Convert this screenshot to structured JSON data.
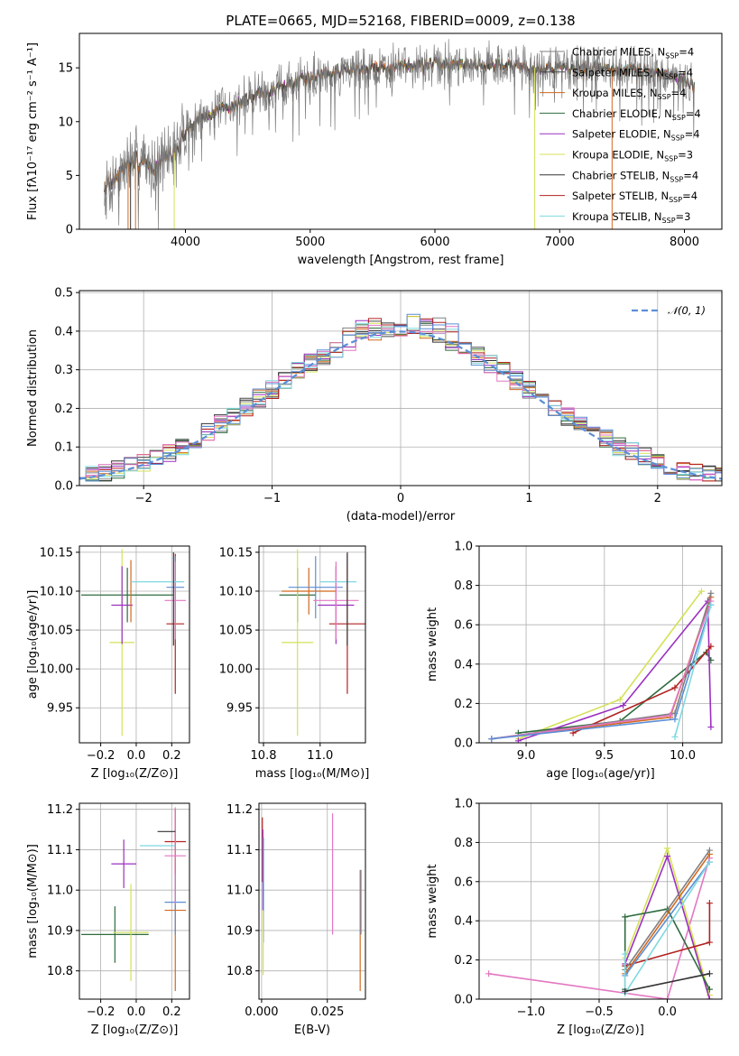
{
  "figure": {
    "title": "PLATE=0665, MJD=52168, FIBERID=0009, z=0.138"
  },
  "chart_data": [
    {
      "id": "spectrum",
      "type": "line",
      "title": "PLATE=0665, MJD=52168, FIBERID=0009, z=0.138",
      "xlabel": "wavelength [Angstrom, rest frame]",
      "ylabel": "Flux [fλ10⁻¹⁷ erg cm⁻² s⁻¹ A⁻¹]",
      "xlim": [
        3150,
        8300
      ],
      "ylim": [
        0,
        18.2
      ],
      "xticks": [
        4000,
        5000,
        6000,
        7000,
        8000
      ],
      "yticks": [
        0,
        5,
        10,
        15
      ],
      "grid": false,
      "legend_position": "right",
      "continuum": {
        "x": [
          3350,
          3450,
          3550,
          3650,
          3750,
          3850,
          3950,
          4000,
          4100,
          4200,
          4300,
          4400,
          4500,
          4600,
          4700,
          4800,
          4900,
          5000,
          5100,
          5200,
          5300,
          5400,
          5500,
          5600,
          5800,
          6000,
          6200,
          6400,
          6600,
          6800,
          7000,
          7200,
          7400,
          7600,
          7800,
          8000,
          8080
        ],
        "y": [
          4.0,
          5.0,
          6.2,
          6.3,
          6.0,
          6.8,
          7.3,
          9.3,
          10.2,
          10.7,
          11.2,
          11.5,
          12.2,
          12.7,
          13.0,
          13.4,
          13.8,
          14.2,
          14.5,
          14.7,
          14.8,
          15.0,
          15.1,
          15.0,
          15.2,
          15.4,
          15.3,
          15.3,
          15.2,
          15.0,
          15.0,
          15.0,
          14.9,
          14.8,
          14.6,
          14.0,
          13.2
        ]
      },
      "series": [
        {
          "name": "Chabrier MILES, N_SSP=4",
          "label_main": "Chabrier MILES, N",
          "label_sub": "SSP",
          "label_tail": "=4",
          "color": "#808080"
        },
        {
          "name": "Salpeter MILES, N_SSP=4",
          "label_main": "Salpeter MILES, N",
          "label_sub": "SSP",
          "label_tail": "=4",
          "color": "#4a4a4a"
        },
        {
          "name": "Kroupa MILES, N_SSP=4",
          "label_main": "Kroupa MILES, N",
          "label_sub": "SSP",
          "label_tail": "=4",
          "color": "#d2691e"
        },
        {
          "name": "Chabrier ELODIE, N_SSP=4",
          "label_main": "Chabrier ELODIE, N",
          "label_sub": "SSP",
          "label_tail": "=4",
          "color": "#2e6b3e"
        },
        {
          "name": "Salpeter ELODIE, N_SSP=4",
          "label_main": "Salpeter ELODIE, N",
          "label_sub": "SSP",
          "label_tail": "=4",
          "color": "#9b30c0"
        },
        {
          "name": "Kroupa ELODIE, N_SSP=3",
          "label_main": "Kroupa ELODIE, N",
          "label_sub": "SSP",
          "label_tail": "=3",
          "color": "#d4e157"
        },
        {
          "name": "Chabrier STELIB, N_SSP=4",
          "label_main": "Chabrier STELIB, N",
          "label_sub": "SSP",
          "label_tail": "=4",
          "color": "#333333"
        },
        {
          "name": "Salpeter STELIB, N_SSP=4",
          "label_main": "Salpeter STELIB, N",
          "label_sub": "SSP",
          "label_tail": "=4",
          "color": "#b22222"
        },
        {
          "name": "Kroupa STELIB, N_SSP=3",
          "label_main": "Kroupa STELIB, N",
          "label_sub": "SSP",
          "label_tail": "=3",
          "color": "#7fd8e0"
        }
      ]
    },
    {
      "id": "residuals",
      "type": "line",
      "xlabel": "(data-model)/error",
      "ylabel": "Normed distribution",
      "xlim": [
        -2.5,
        2.5
      ],
      "ylim": [
        0,
        0.505
      ],
      "xticks": [
        -2,
        -1,
        0,
        1,
        2
      ],
      "yticks": [
        0.0,
        0.1,
        0.2,
        0.3,
        0.4,
        0.5
      ],
      "grid": true,
      "legend_position": "top-right",
      "gaussian_label": "𝒩(0, 1)",
      "gaussian_color": "#5b8ed6",
      "bin_width": 0.1,
      "hist_colors": [
        "#808080",
        "#4a4a4a",
        "#d2691e",
        "#2e6b3e",
        "#9b30c0",
        "#d4e157",
        "#333333",
        "#b22222",
        "#7fd8e0",
        "#e377c2",
        "#5b8ed6"
      ]
    },
    {
      "id": "age_vs_Z",
      "type": "scatter",
      "xlabel": "Z [log₁₀(Z/Z⊙)]",
      "ylabel": "age  [log₁₀(age/yr)]",
      "xlim": [
        -0.32,
        0.3
      ],
      "ylim": [
        9.905,
        10.158
      ],
      "xticks": [
        -0.2,
        0.0,
        0.2
      ],
      "yticks": [
        9.95,
        10.0,
        10.05,
        10.1,
        10.15
      ],
      "grid": true,
      "points": [
        {
          "x": -0.05,
          "y": 10.095,
          "xerr": 0.26,
          "yerr": 0.035,
          "color": "#2e6b3e"
        },
        {
          "x": -0.08,
          "y": 10.034,
          "xerr": 0.07,
          "yerr": 0.12,
          "color": "#d4e157"
        },
        {
          "x": -0.08,
          "y": 10.082,
          "xerr": 0.06,
          "yerr": 0.05,
          "color": "#9b30c0"
        },
        {
          "x": -0.03,
          "y": 10.1,
          "xerr": 0.0,
          "yerr": 0.04,
          "color": "#d2691e"
        },
        {
          "x": 0.22,
          "y": 10.058,
          "xerr": 0.05,
          "yerr": 0.09,
          "color": "#b22222"
        },
        {
          "x": 0.22,
          "y": 10.105,
          "xerr": 0.05,
          "yerr": 0.04,
          "color": "#5b8ed6"
        },
        {
          "x": 0.22,
          "y": 10.088,
          "xerr": 0.06,
          "yerr": 0.05,
          "color": "#e377c2"
        },
        {
          "x": 0.12,
          "y": 10.112,
          "xerr": 0.15,
          "yerr": 0.0,
          "color": "#7fd8e0"
        },
        {
          "x": 0.21,
          "y": 10.09,
          "xerr": 0.0,
          "yerr": 0.06,
          "color": "#333333"
        }
      ]
    },
    {
      "id": "age_vs_mass",
      "type": "scatter",
      "xlabel": "mass [log₁₀(M/M⊙)]",
      "ylabel": "",
      "xlim": [
        10.73,
        11.2
      ],
      "ylim": [
        9.905,
        10.158
      ],
      "xticks": [
        10.75,
        11.0
      ],
      "yticks": [
        9.95,
        10.0,
        10.05,
        10.1,
        10.15
      ],
      "grid": true,
      "points": [
        {
          "x": 10.9,
          "y": 10.095,
          "xerr": 0.08,
          "yerr": 0.035,
          "color": "#2e6b3e"
        },
        {
          "x": 10.9,
          "y": 10.034,
          "xerr": 0.07,
          "yerr": 0.12,
          "color": "#d4e157"
        },
        {
          "x": 11.07,
          "y": 10.082,
          "xerr": 0.08,
          "yerr": 0.05,
          "color": "#9b30c0"
        },
        {
          "x": 10.95,
          "y": 10.1,
          "xerr": 0.12,
          "yerr": 0.03,
          "color": "#d2691e"
        },
        {
          "x": 11.12,
          "y": 10.058,
          "xerr": 0.08,
          "yerr": 0.09,
          "color": "#b22222"
        },
        {
          "x": 10.98,
          "y": 10.105,
          "xerr": 0.12,
          "yerr": 0.04,
          "color": "#5b8ed6"
        },
        {
          "x": 11.07,
          "y": 10.088,
          "xerr": 0.1,
          "yerr": 0.05,
          "color": "#e377c2"
        },
        {
          "x": 11.08,
          "y": 10.112,
          "xerr": 0.08,
          "yerr": 0.0,
          "color": "#7fd8e0"
        },
        {
          "x": 11.12,
          "y": 10.09,
          "xerr": 0.0,
          "yerr": 0.06,
          "color": "#333333"
        }
      ]
    },
    {
      "id": "mass_weight_vs_age",
      "type": "line",
      "xlabel": "age  [log₁₀(age/yr)]",
      "ylabel": "mass weight",
      "xlim": [
        8.7,
        10.25
      ],
      "ylim": [
        0.0,
        1.0
      ],
      "xticks": [
        9.0,
        9.5,
        10.0
      ],
      "yticks": [
        0.0,
        0.2,
        0.4,
        0.6,
        0.8,
        1.0
      ],
      "grid": true,
      "series": [
        {
          "color": "#d4e157",
          "x": [
            8.95,
            9.6,
            10.12
          ],
          "y": [
            0.02,
            0.22,
            0.77
          ]
        },
        {
          "color": "#2e6b3e",
          "x": [
            8.95,
            9.6,
            10.15,
            10.18
          ],
          "y": [
            0.05,
            0.11,
            0.46,
            0.42
          ]
        },
        {
          "color": "#9b30c0",
          "x": [
            8.95,
            9.62,
            10.16,
            10.18
          ],
          "y": [
            0.01,
            0.19,
            0.72,
            0.08
          ]
        },
        {
          "color": "#b22222",
          "x": [
            9.3,
            9.95,
            10.18
          ],
          "y": [
            0.05,
            0.28,
            0.49
          ]
        },
        {
          "color": "#d2691e",
          "x": [
            8.78,
            9.92,
            10.18
          ],
          "y": [
            0.02,
            0.13,
            0.74
          ]
        },
        {
          "color": "#808080",
          "x": [
            8.78,
            9.95,
            10.18
          ],
          "y": [
            0.02,
            0.15,
            0.76
          ]
        },
        {
          "color": "#e377c2",
          "x": [
            8.78,
            9.92,
            10.18
          ],
          "y": [
            0.02,
            0.14,
            0.72
          ]
        },
        {
          "color": "#5b8ed6",
          "x": [
            8.78,
            9.95,
            10.18
          ],
          "y": [
            0.02,
            0.12,
            0.7
          ]
        },
        {
          "color": "#7fd8e0",
          "x": [
            9.95,
            10.18
          ],
          "y": [
            0.03,
            0.7
          ]
        }
      ]
    },
    {
      "id": "mass_vs_Z",
      "type": "scatter",
      "xlabel": "Z [log₁₀(Z/Z⊙)]",
      "ylabel": "mass [log₁₀(M/M⊙)]",
      "xlim": [
        -0.32,
        0.3
      ],
      "ylim": [
        10.73,
        11.215
      ],
      "xticks": [
        -0.2,
        0.0,
        0.2
      ],
      "yticks": [
        10.8,
        10.9,
        11.0,
        11.1,
        11.2
      ],
      "grid": true,
      "points": [
        {
          "x": -0.12,
          "y": 10.89,
          "xerr": 0.19,
          "yerr": 0.07,
          "color": "#2e6b3e"
        },
        {
          "x": -0.03,
          "y": 10.895,
          "xerr": 0.1,
          "yerr": 0.12,
          "color": "#d4e157"
        },
        {
          "x": -0.07,
          "y": 11.065,
          "xerr": 0.07,
          "yerr": 0.06,
          "color": "#9b30c0"
        },
        {
          "x": 0.22,
          "y": 10.95,
          "xerr": 0.06,
          "yerr": 0.2,
          "color": "#d2691e"
        },
        {
          "x": 0.22,
          "y": 10.97,
          "xerr": 0.06,
          "yerr": 0.08,
          "color": "#5b8ed6"
        },
        {
          "x": 0.22,
          "y": 11.12,
          "xerr": 0.06,
          "yerr": 0.08,
          "color": "#b22222"
        },
        {
          "x": 0.22,
          "y": 11.085,
          "xerr": 0.06,
          "yerr": 0.12,
          "color": "#e377c2"
        },
        {
          "x": 0.12,
          "y": 11.11,
          "xerr": 0.1,
          "yerr": 0.0,
          "color": "#7fd8e0"
        },
        {
          "x": 0.17,
          "y": 11.145,
          "xerr": 0.05,
          "yerr": 0.0,
          "color": "#333333"
        }
      ]
    },
    {
      "id": "mass_vs_ebv",
      "type": "scatter",
      "xlabel": "E(B-V)",
      "ylabel": "",
      "xlim": [
        -0.001,
        0.0395
      ],
      "ylim": [
        10.73,
        11.215
      ],
      "xticks": [
        0.0,
        0.025
      ],
      "yticks": [
        10.8,
        10.9,
        11.0,
        11.1,
        11.2
      ],
      "grid": true,
      "points": [
        {
          "x": 0.0003,
          "y": 11.1,
          "xerr": 0.0,
          "yerr": 0.08,
          "color": "#b22222"
        },
        {
          "x": 0.0005,
          "y": 11.05,
          "xerr": 0.0,
          "yerr": 0.1,
          "color": "#9b30c0"
        },
        {
          "x": 0.0007,
          "y": 11.0,
          "xerr": 0.0,
          "yerr": 0.13,
          "color": "#5b8ed6"
        },
        {
          "x": 0.0006,
          "y": 10.87,
          "xerr": 0.0,
          "yerr": 0.08,
          "color": "#d4e157"
        },
        {
          "x": 0.027,
          "y": 11.04,
          "xerr": 0.0,
          "yerr": 0.15,
          "color": "#e377c2"
        },
        {
          "x": 0.0375,
          "y": 10.9,
          "xerr": 0.0,
          "yerr": 0.15,
          "color": "#d2691e"
        },
        {
          "x": 0.0378,
          "y": 10.97,
          "xerr": 0.0,
          "yerr": 0.08,
          "color": "#5b8ed6"
        }
      ]
    },
    {
      "id": "mass_weight_vs_Z",
      "type": "line",
      "xlabel": "Z [log₁₀(Z/Z⊙)]",
      "ylabel": "mass weight",
      "xlim": [
        -1.38,
        0.4
      ],
      "ylim": [
        0.0,
        1.0
      ],
      "xticks": [
        -1.0,
        -0.5,
        0.0
      ],
      "yticks": [
        0.0,
        0.2,
        0.4,
        0.6,
        0.8,
        1.0
      ],
      "grid": true,
      "series": [
        {
          "color": "#e377c2",
          "x": [
            -1.31,
            0.0,
            0.31
          ],
          "y": [
            0.13,
            0.0,
            0.72
          ]
        },
        {
          "color": "#d4e157",
          "x": [
            -0.31,
            0.0,
            0.31
          ],
          "y": [
            0.21,
            0.77,
            0.02
          ]
        },
        {
          "color": "#9b30c0",
          "x": [
            -0.31,
            0.0,
            0.31
          ],
          "y": [
            0.18,
            0.73,
            0.0
          ]
        },
        {
          "color": "#2e6b3e",
          "x": [
            -0.31,
            -0.31,
            0.0,
            0.31
          ],
          "y": [
            0.05,
            0.42,
            0.46,
            0.05
          ]
        },
        {
          "color": "#b22222",
          "x": [
            -0.31,
            0.31,
            0.31
          ],
          "y": [
            0.17,
            0.29,
            0.49
          ]
        },
        {
          "color": "#d2691e",
          "x": [
            -0.31,
            0.31
          ],
          "y": [
            0.13,
            0.74
          ]
        },
        {
          "color": "#808080",
          "x": [
            -0.31,
            0.31
          ],
          "y": [
            0.15,
            0.76
          ]
        },
        {
          "color": "#5b8ed6",
          "x": [
            -0.31,
            0.31
          ],
          "y": [
            0.12,
            0.7
          ]
        },
        {
          "color": "#7fd8e0",
          "x": [
            -0.31,
            -0.31,
            0.31
          ],
          "y": [
            0.23,
            0.03,
            0.7
          ]
        },
        {
          "color": "#333333",
          "x": [
            -0.31,
            0.31
          ],
          "y": [
            0.04,
            0.13
          ]
        }
      ]
    }
  ]
}
